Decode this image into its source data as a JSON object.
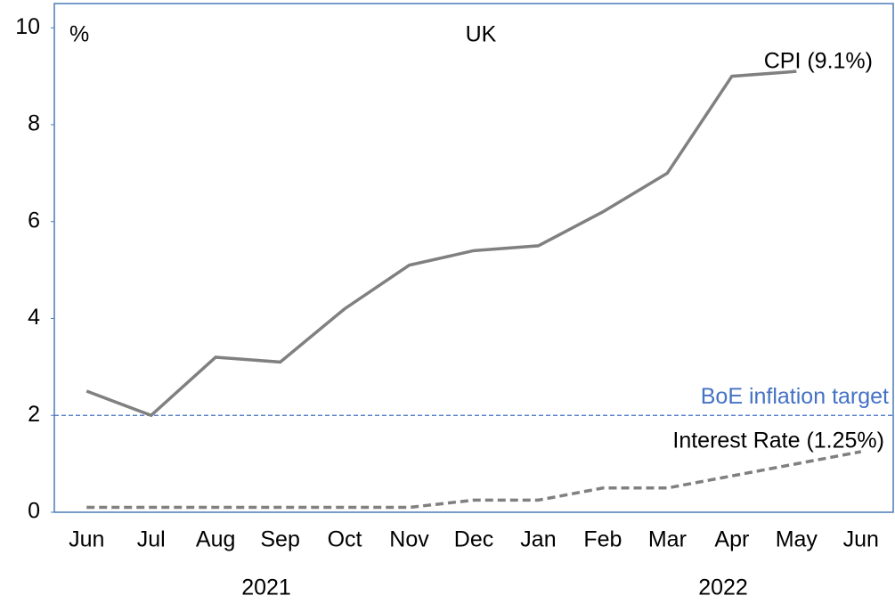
{
  "chart_data": {
    "type": "line",
    "title": "UK",
    "y_unit_label": "%",
    "categories": [
      "Jun",
      "Jul",
      "Aug",
      "Sep",
      "Oct",
      "Nov",
      "Dec",
      "Jan",
      "Feb",
      "Mar",
      "Apr",
      "May",
      "Jun"
    ],
    "year_labels": [
      "2021",
      "2022"
    ],
    "series": [
      {
        "name": "CPI (9.1%)",
        "color": "#808080",
        "dash": false,
        "values": [
          2.5,
          2.0,
          3.2,
          3.1,
          4.2,
          5.1,
          5.4,
          5.5,
          6.2,
          7.0,
          9.0,
          9.1,
          null
        ]
      },
      {
        "name": "Interest Rate (1.25%)",
        "color": "#808080",
        "dash": true,
        "values": [
          0.1,
          0.1,
          0.1,
          0.1,
          0.1,
          0.1,
          0.25,
          0.25,
          0.5,
          0.5,
          0.75,
          1.0,
          1.25
        ]
      }
    ],
    "target": 2,
    "target_label": "BoE inflation target",
    "target_color": "#4472c4",
    "ylim": [
      0,
      10.5
    ],
    "yticks": [
      0,
      2,
      4,
      6,
      8,
      10
    ],
    "grid": false
  }
}
